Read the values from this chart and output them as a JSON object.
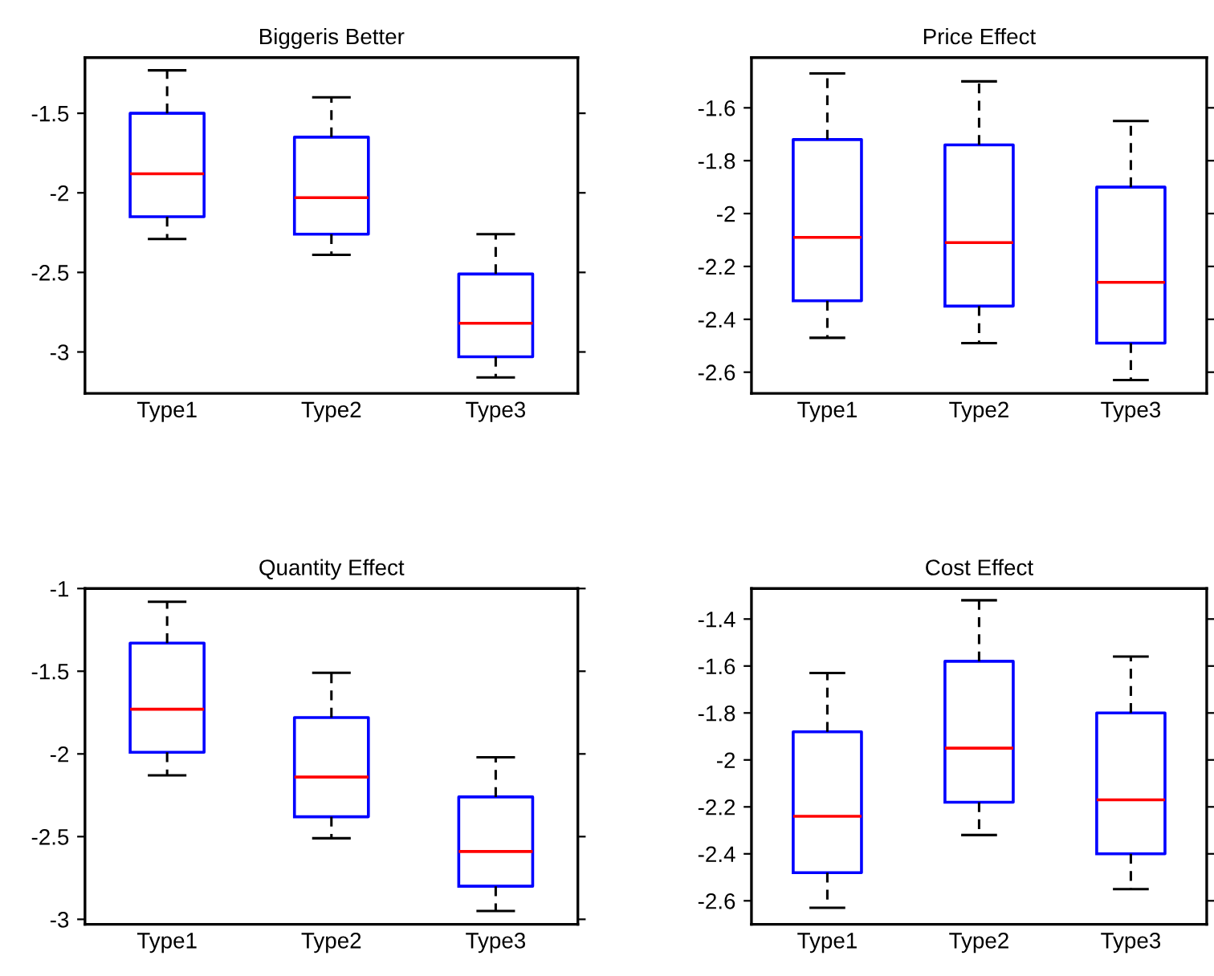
{
  "chart_data": [
    {
      "type": "box",
      "title": "Biggeris Better",
      "categories": [
        "Type1",
        "Type2",
        "Type3"
      ],
      "ylim": [
        -3.26,
        -1.15
      ],
      "yticks": [
        -3,
        -2.5,
        -2,
        -1.5
      ],
      "grid": false,
      "boxes": [
        {
          "low": -2.29,
          "q1": -2.15,
          "median": -1.88,
          "q3": -1.5,
          "high": -1.23
        },
        {
          "low": -2.39,
          "q1": -2.26,
          "median": -2.03,
          "q3": -1.65,
          "high": -1.4
        },
        {
          "low": -3.16,
          "q1": -3.03,
          "median": -2.82,
          "q3": -2.51,
          "high": -2.26
        }
      ]
    },
    {
      "type": "box",
      "title": "Price Effect",
      "categories": [
        "Type1",
        "Type2",
        "Type3"
      ],
      "ylim": [
        -2.68,
        -1.41
      ],
      "yticks": [
        -2.6,
        -2.4,
        -2.2,
        -2,
        -1.8,
        -1.6
      ],
      "grid": false,
      "boxes": [
        {
          "low": -2.47,
          "q1": -2.33,
          "median": -2.09,
          "q3": -1.72,
          "high": -1.47
        },
        {
          "low": -2.49,
          "q1": -2.35,
          "median": -2.11,
          "q3": -1.74,
          "high": -1.5
        },
        {
          "low": -2.63,
          "q1": -2.49,
          "median": -2.26,
          "q3": -1.9,
          "high": -1.65
        }
      ]
    },
    {
      "type": "box",
      "title": "Quantity Effect",
      "categories": [
        "Type1",
        "Type2",
        "Type3"
      ],
      "ylim": [
        -3.03,
        -1
      ],
      "yticks": [
        -3,
        -2.5,
        -2,
        -1.5,
        -1
      ],
      "grid": false,
      "boxes": [
        {
          "low": -2.13,
          "q1": -1.99,
          "median": -1.73,
          "q3": -1.33,
          "high": -1.08
        },
        {
          "low": -2.51,
          "q1": -2.38,
          "median": -2.14,
          "q3": -1.78,
          "high": -1.51
        },
        {
          "low": -2.95,
          "q1": -2.8,
          "median": -2.59,
          "q3": -2.26,
          "high": -2.02
        }
      ]
    },
    {
      "type": "box",
      "title": "Cost Effect",
      "categories": [
        "Type1",
        "Type2",
        "Type3"
      ],
      "ylim": [
        -2.7,
        -1.27
      ],
      "yticks": [
        -2.6,
        -2.4,
        -2.2,
        -2,
        -1.8,
        -1.6,
        -1.4
      ],
      "grid": false,
      "boxes": [
        {
          "low": -2.63,
          "q1": -2.48,
          "median": -2.24,
          "q3": -1.88,
          "high": -1.63
        },
        {
          "low": -2.32,
          "q1": -2.18,
          "median": -1.95,
          "q3": -1.58,
          "high": -1.32
        },
        {
          "low": -2.55,
          "q1": -2.4,
          "median": -2.17,
          "q3": -1.8,
          "high": -1.56
        }
      ]
    }
  ]
}
